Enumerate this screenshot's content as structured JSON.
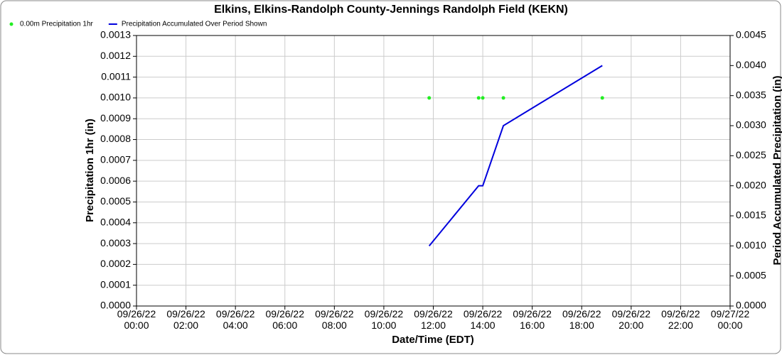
{
  "chart_data": {
    "type": "line",
    "title": "Elkins, Elkins-Randolph County-Jennings Randolph Field (KEKN)",
    "x_label": "Date/Time (EDT)",
    "y_label": "Precipitation 1hr (in)",
    "y2_label": "Period Accumulated Precipitation (in)",
    "x": [
      "09/26/22 11:50",
      "09/26/22 13:50",
      "09/26/22 14:00",
      "09/26/22 14:50",
      "09/26/22 18:50"
    ],
    "series": [
      {
        "name": "0.00m Precipitation 1hr",
        "color": "#22ee22",
        "mode": "markers",
        "values": [
          0.001,
          0.001,
          0.001,
          0.001,
          0.001
        ]
      },
      {
        "name": "Precipitation Accumulated Over Period Shown",
        "color": "#0000dd",
        "mode": "line",
        "axis": "y2",
        "values": [
          0.001,
          0.002,
          0.002,
          0.003,
          0.004
        ]
      }
    ],
    "xlim": [
      "09/26/22 00:00",
      "09/27/22 00:00"
    ],
    "xticks": [
      "09/26/22 00:00",
      "09/26/22 02:00",
      "09/26/22 04:00",
      "09/26/22 06:00",
      "09/26/22 08:00",
      "09/26/22 10:00",
      "09/26/22 12:00",
      "09/26/22 14:00",
      "09/26/22 16:00",
      "09/26/22 18:00",
      "09/26/22 20:00",
      "09/26/22 22:00",
      "09/27/22 00:00"
    ],
    "ylim": [
      0,
      0.0013
    ],
    "yticks": [
      {
        "value": 0,
        "label": "0.0000"
      },
      {
        "value": 0.0001,
        "label": "0.0001"
      },
      {
        "value": 0.0002,
        "label": "0.0002"
      },
      {
        "value": 0.0003,
        "label": "0.0003"
      },
      {
        "value": 0.0004,
        "label": "0.0004"
      },
      {
        "value": 0.0005,
        "label": "0.0005"
      },
      {
        "value": 0.0006,
        "label": "0.0006"
      },
      {
        "value": 0.0007,
        "label": "0.0007"
      },
      {
        "value": 0.0008,
        "label": "0.0008"
      },
      {
        "value": 0.0009,
        "label": "0.0009"
      },
      {
        "value": 0.001,
        "label": "0.0010"
      },
      {
        "value": 0.0011,
        "label": "0.0011"
      },
      {
        "value": 0.0012,
        "label": "0.0012"
      },
      {
        "value": 0.0013,
        "label": "0.0013"
      }
    ],
    "y2lim": [
      0,
      0.0045
    ],
    "y2ticks": [
      {
        "value": 0,
        "label": "0.0000"
      },
      {
        "value": 0.0005,
        "label": "0.0005"
      },
      {
        "value": 0.001,
        "label": "0.0010"
      },
      {
        "value": 0.0015,
        "label": "0.0015"
      },
      {
        "value": 0.002,
        "label": "0.0020"
      },
      {
        "value": 0.0025,
        "label": "0.0025"
      },
      {
        "value": 0.003,
        "label": "0.0030"
      },
      {
        "value": 0.0035,
        "label": "0.0035"
      },
      {
        "value": 0.004,
        "label": "0.0040"
      },
      {
        "value": 0.0045,
        "label": "0.0045"
      }
    ],
    "grid": true,
    "legend": "top-left"
  }
}
